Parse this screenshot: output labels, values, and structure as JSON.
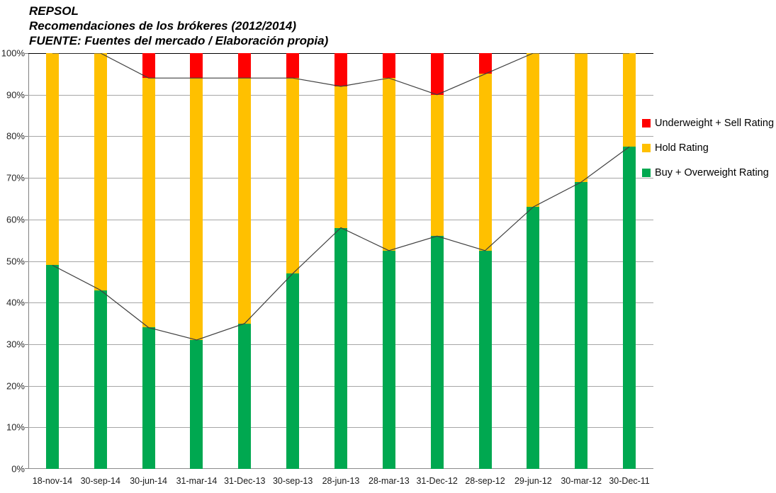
{
  "title": {
    "line1": "REPSOL",
    "line2": "Recomendaciones de los brókeres (2012/2014)",
    "line3": "FUENTE: Fuentes del mercado / Elaboración propia)"
  },
  "legend": [
    {
      "label": "Underweight + Sell Rating",
      "color": "#ff0000"
    },
    {
      "label": "Hold Rating",
      "color": "#ffc000"
    },
    {
      "label": "Buy + Overweight Rating",
      "color": "#00a850"
    }
  ],
  "colors": {
    "buy": "#00a850",
    "hold": "#ffc000",
    "sell": "#ff0000",
    "overlay_line": "#404040",
    "gridline": "#a6a6a6",
    "top_border": "#000000",
    "axis": "#808080"
  },
  "chart_data": {
    "type": "bar",
    "stacked": true,
    "title": "REPSOL - Recomendaciones de los brókeres (2012/2014)",
    "source": "FUENTE: Fuentes del mercado / Elaboración propia)",
    "categories": [
      "18-nov-14",
      "30-sep-14",
      "30-jun-14",
      "31-mar-14",
      "31-Dec-13",
      "30-sep-13",
      "28-jun-13",
      "28-mar-13",
      "31-Dec-12",
      "28-sep-12",
      "29-jun-12",
      "30-mar-12",
      "30-Dec-11"
    ],
    "series": [
      {
        "name": "Buy + Overweight Rating",
        "color": "#00a850",
        "values": [
          49,
          43,
          34,
          31,
          35,
          47,
          58,
          52.5,
          56,
          52.5,
          63,
          69,
          77.5
        ]
      },
      {
        "name": "Hold Rating",
        "color": "#ffc000",
        "values": [
          51,
          57,
          60,
          63,
          59,
          47,
          34,
          41.5,
          34,
          42.5,
          37,
          31,
          22.5
        ]
      },
      {
        "name": "Underweight + Sell Rating",
        "color": "#ff0000",
        "values": [
          0,
          0,
          6,
          6,
          6,
          6,
          8,
          6,
          10,
          5,
          0,
          0,
          0
        ]
      }
    ],
    "line_overlays": [
      {
        "name": "buy-top-line",
        "values": [
          49,
          43,
          34,
          31,
          35,
          47,
          58,
          52.5,
          56,
          52.5,
          63,
          69,
          77.5
        ]
      },
      {
        "name": "hold-top-line",
        "values": [
          100,
          100,
          94,
          94,
          94,
          94,
          92,
          94,
          90,
          95,
          100,
          100,
          100
        ]
      }
    ],
    "xlabel": "",
    "ylabel": "",
    "ylim": [
      0,
      100
    ],
    "yticks": [
      "0%",
      "10%",
      "20%",
      "30%",
      "40%",
      "50%",
      "60%",
      "70%",
      "80%",
      "90%",
      "100%"
    ],
    "grid": true,
    "legend_position": "right"
  }
}
